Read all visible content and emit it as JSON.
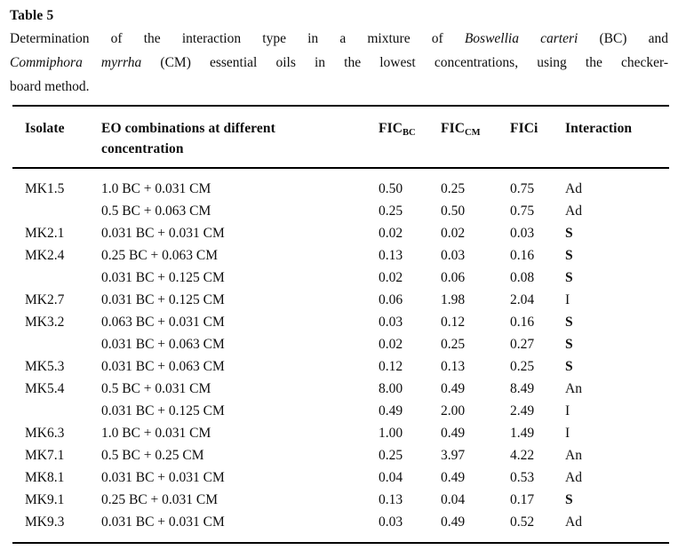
{
  "caption": {
    "label": "Table 5",
    "line1": {
      "part1": "Determination of the interaction type in a mixture of ",
      "italic": "Boswellia carteri",
      "part2": " (BC) and"
    },
    "line2": {
      "italic": "Commiphora myrrha",
      "part2": " (CM) essential oils in the lowest concentrations, using the checker-"
    },
    "line3": "board method."
  },
  "table": {
    "headers": {
      "isolate": "Isolate",
      "combination_line1": "EO combinations at different",
      "combination_line2": "concentration",
      "fic": "FIC",
      "sub_bc": "BC",
      "sub_cm": "CM",
      "fici": "FICi",
      "interaction": "Interaction"
    },
    "emphasized_interaction": "S",
    "rows": [
      {
        "isolate": "MK1.5",
        "combination": "1.0 BC + 0.031 CM",
        "fic_bc": "0.50",
        "fic_cm": "0.25",
        "fici": "0.75",
        "interaction": "Ad"
      },
      {
        "isolate": "",
        "combination": "0.5 BC + 0.063 CM",
        "fic_bc": "0.25",
        "fic_cm": "0.50",
        "fici": "0.75",
        "interaction": "Ad"
      },
      {
        "isolate": "MK2.1",
        "combination": "0.031 BC + 0.031 CM",
        "fic_bc": "0.02",
        "fic_cm": "0.02",
        "fici": "0.03",
        "interaction": "S"
      },
      {
        "isolate": "MK2.4",
        "combination": "0.25 BC + 0.063 CM",
        "fic_bc": "0.13",
        "fic_cm": "0.03",
        "fici": "0.16",
        "interaction": "S"
      },
      {
        "isolate": "",
        "combination": "0.031 BC + 0.125 CM",
        "fic_bc": "0.02",
        "fic_cm": "0.06",
        "fici": "0.08",
        "interaction": "S"
      },
      {
        "isolate": "MK2.7",
        "combination": "0.031 BC + 0.125 CM",
        "fic_bc": "0.06",
        "fic_cm": "1.98",
        "fici": "2.04",
        "interaction": "I"
      },
      {
        "isolate": "MK3.2",
        "combination": "0.063 BC + 0.031 CM",
        "fic_bc": "0.03",
        "fic_cm": "0.12",
        "fici": "0.16",
        "interaction": "S"
      },
      {
        "isolate": "",
        "combination": "0.031 BC + 0.063 CM",
        "fic_bc": "0.02",
        "fic_cm": "0.25",
        "fici": "0.27",
        "interaction": "S"
      },
      {
        "isolate": "MK5.3",
        "combination": "0.031 BC + 0.063 CM",
        "fic_bc": "0.12",
        "fic_cm": "0.13",
        "fici": "0.25",
        "interaction": "S"
      },
      {
        "isolate": "MK5.4",
        "combination": "0.5 BC + 0.031 CM",
        "fic_bc": "8.00",
        "fic_cm": "0.49",
        "fici": "8.49",
        "interaction": "An"
      },
      {
        "isolate": "",
        "combination": "0.031 BC + 0.125 CM",
        "fic_bc": "0.49",
        "fic_cm": "2.00",
        "fici": "2.49",
        "interaction": "I"
      },
      {
        "isolate": "MK6.3",
        "combination": "1.0 BC + 0.031 CM",
        "fic_bc": "1.00",
        "fic_cm": "0.49",
        "fici": "1.49",
        "interaction": "I"
      },
      {
        "isolate": "MK7.1",
        "combination": "0.5 BC + 0.25 CM",
        "fic_bc": "0.25",
        "fic_cm": "3.97",
        "fici": "4.22",
        "interaction": "An"
      },
      {
        "isolate": "MK8.1",
        "combination": "0.031 BC + 0.031 CM",
        "fic_bc": "0.04",
        "fic_cm": "0.49",
        "fici": "0.53",
        "interaction": "Ad"
      },
      {
        "isolate": "MK9.1",
        "combination": "0.25 BC + 0.031 CM",
        "fic_bc": "0.13",
        "fic_cm": "0.04",
        "fici": "0.17",
        "interaction": "S"
      },
      {
        "isolate": "MK9.3",
        "combination": "0.031 BC + 0.031 CM",
        "fic_bc": "0.03",
        "fic_cm": "0.49",
        "fici": "0.52",
        "interaction": "Ad"
      }
    ]
  },
  "colors": {
    "background": "#ffffff",
    "text": "#0e0e0e",
    "rule": "#000000"
  }
}
